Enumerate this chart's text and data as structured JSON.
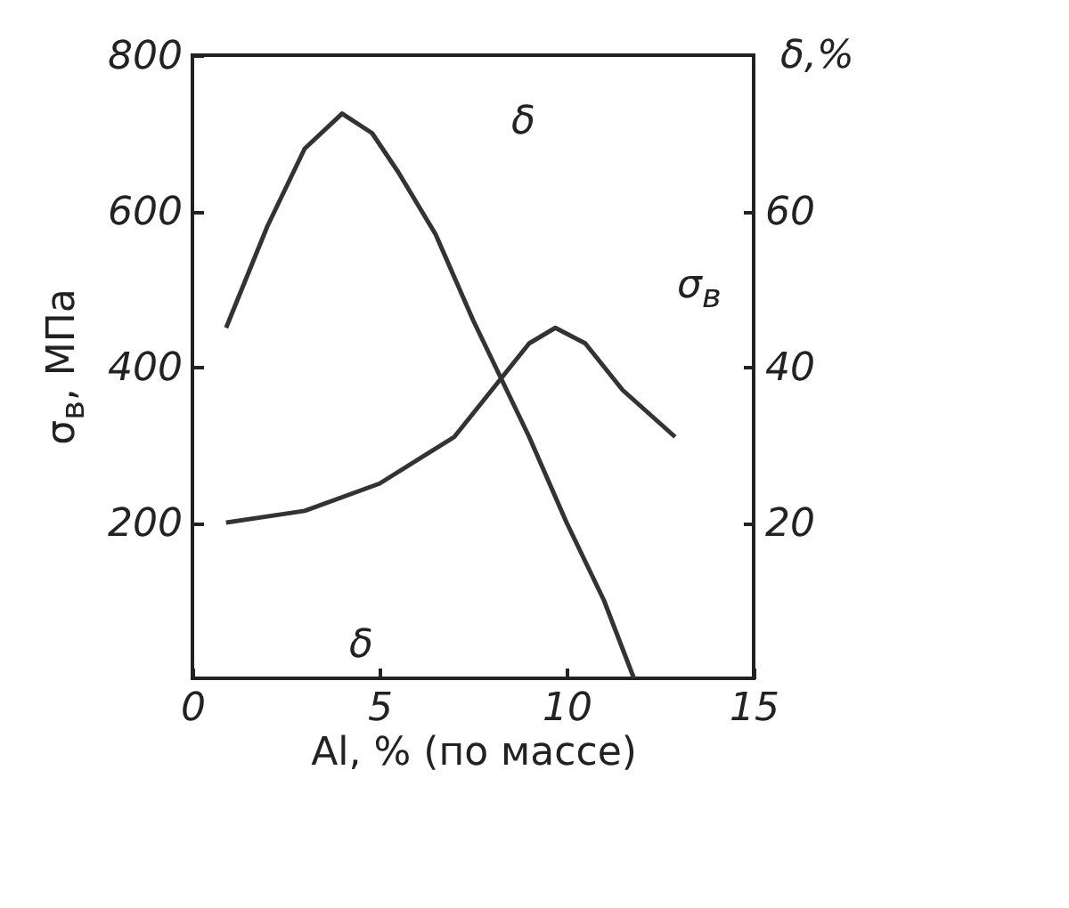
{
  "chart_data": {
    "type": "line",
    "xlabel": "Al, % (по массе)",
    "ylabel": "σ$_{в}$, МПа",
    "y2label": "δ,%",
    "xlim": [
      0,
      15
    ],
    "xticks": [
      0,
      5,
      10,
      15
    ],
    "ylim": [
      0,
      800
    ],
    "yticks": [
      200,
      400,
      600,
      800
    ],
    "y2lim": [
      0,
      80
    ],
    "y2ticks": [
      20,
      40,
      60
    ],
    "grid": false,
    "marker": "none",
    "line_style": "solid",
    "series": [
      {
        "color": "#333333",
        "x": [
          0.9,
          3,
          5,
          7,
          8,
          9,
          9.7,
          10.5,
          11.5,
          12.9
        ],
        "values": [
          200,
          215,
          250,
          310,
          370,
          430,
          450,
          430,
          370,
          310
        ]
      },
      {
        "color": "#333333",
        "axis": "y2",
        "x": [
          0.9,
          2,
          3,
          4,
          4.8,
          5.5,
          6.5,
          7.5,
          8.1,
          9,
          10,
          11,
          11.8
        ],
        "values": [
          45,
          58,
          68,
          72.5,
          70,
          65,
          57,
          46,
          40,
          31,
          20,
          10,
          0
        ]
      }
    ],
    "annotations": [
      "δ",
      "σ$_{в}$",
      "δ"
    ]
  }
}
